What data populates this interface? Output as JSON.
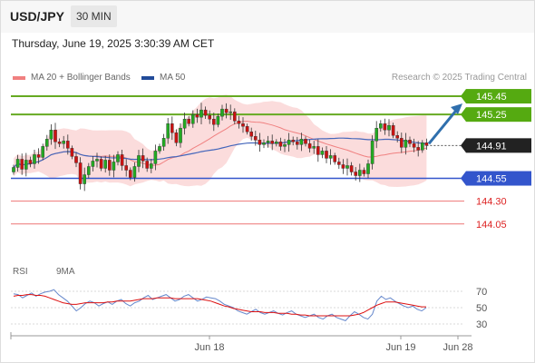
{
  "header": {
    "symbol": "USD/JPY",
    "timeframe": "30 MIN",
    "timestamp": "Thursday, June 19, 2025 3:30:39 AM CET"
  },
  "legend": {
    "ma20_bollinger": "MA 20 + Bollinger Bands",
    "ma50": "MA 50",
    "credit": "Research © 2025 Trading Central",
    "rsi": "RSI",
    "rsi_ma": "9MA"
  },
  "colors": {
    "candle_up": "#22aa22",
    "candle_down": "#cc1111",
    "bollinger_fill": "#f9d0d0",
    "ma20": "#f08080",
    "ma50": "#4466bb",
    "green_level": "#66aa22",
    "blue_level": "#3355cc",
    "red_level": "#ee7777",
    "arrow": "#2f6fad",
    "rsi_line": "#6688cc",
    "rsi_ma_line": "#dd1111"
  },
  "chart_data": {
    "type": "candlestick",
    "instrument": "USD/JPY",
    "interval": "30 MIN",
    "y_range": [
      143.7,
      145.55
    ],
    "x_labels": [
      "Jun 18",
      "Jun 19",
      "Jun 28"
    ],
    "current_price": 144.91,
    "levels": [
      {
        "value": 145.45,
        "label": "145.45",
        "kind": "resistance"
      },
      {
        "value": 145.25,
        "label": "145.25",
        "kind": "resistance"
      },
      {
        "value": 144.55,
        "label": "144.55",
        "kind": "pivot"
      },
      {
        "value": 144.3,
        "label": "144.30",
        "kind": "support"
      },
      {
        "value": 144.05,
        "label": "144.05",
        "kind": "support"
      }
    ],
    "forecast_target": 145.45,
    "closes": [
      144.67,
      144.76,
      144.65,
      144.75,
      144.71,
      144.81,
      144.78,
      144.9,
      144.98,
      145.08,
      144.95,
      144.93,
      144.96,
      144.88,
      144.79,
      144.72,
      144.49,
      144.59,
      144.68,
      144.74,
      144.76,
      144.66,
      144.75,
      144.64,
      144.73,
      144.81,
      144.69,
      144.64,
      144.56,
      144.68,
      144.8,
      144.74,
      144.66,
      144.71,
      144.85,
      144.9,
      144.99,
      145.15,
      145.05,
      144.94,
      145.1,
      145.2,
      145.15,
      145.25,
      145.22,
      145.3,
      145.24,
      145.2,
      145.14,
      145.23,
      145.31,
      145.27,
      145.28,
      145.18,
      145.15,
      145.12,
      145.06,
      145.01,
      144.97,
      144.92,
      144.94,
      144.96,
      144.93,
      144.95,
      144.9,
      144.92,
      144.97,
      144.95,
      144.92,
      144.98,
      144.93,
      144.88,
      144.9,
      144.81,
      144.85,
      144.77,
      144.8,
      144.73,
      144.7,
      144.66,
      144.69,
      144.62,
      144.58,
      144.64,
      144.6,
      144.71,
      144.96,
      145.1,
      145.15,
      145.08,
      145.13,
      145.02,
      144.99,
      144.89,
      144.97,
      144.93,
      144.89,
      144.86,
      144.94,
      144.91
    ],
    "rsi": {
      "y_range": [
        20,
        80
      ],
      "ticks": [
        70,
        50,
        30
      ],
      "rsi_values": [
        67,
        66,
        62,
        65,
        68,
        64,
        67,
        69,
        70,
        72,
        66,
        62,
        58,
        52,
        46,
        50,
        55,
        58,
        56,
        52,
        55,
        57,
        54,
        58,
        60,
        55,
        52,
        56,
        58,
        62,
        65,
        60,
        62,
        64,
        66,
        62,
        58,
        60,
        64,
        66,
        62,
        58,
        60,
        63,
        62,
        61,
        58,
        54,
        52,
        50,
        46,
        44,
        42,
        45,
        48,
        44,
        42,
        44,
        46,
        43,
        41,
        44,
        46,
        42,
        40,
        38,
        40,
        42,
        38,
        36,
        40,
        42,
        38,
        36,
        34,
        40,
        45,
        42,
        38,
        36,
        42,
        58,
        64,
        60,
        62,
        58,
        55,
        52,
        50,
        52,
        48,
        46,
        50
      ],
      "ma_values": [
        64,
        65,
        65,
        66,
        66,
        65,
        65,
        64,
        62,
        60,
        58,
        56,
        55,
        54,
        54,
        55,
        56,
        56,
        56,
        56,
        56,
        57,
        57,
        58,
        58,
        58,
        58,
        59,
        60,
        61,
        61,
        61,
        62,
        62,
        62,
        62,
        61,
        61,
        61,
        61,
        61,
        61,
        60,
        59,
        58,
        56,
        54,
        52,
        51,
        49,
        48,
        47,
        46,
        45,
        45,
        45,
        44,
        44,
        44,
        43,
        43,
        43,
        42,
        42,
        41,
        41,
        40,
        40,
        40,
        40,
        40,
        40,
        40,
        40,
        40,
        40,
        41,
        42,
        44,
        47,
        50,
        53,
        55,
        57,
        57,
        57,
        56,
        55,
        54,
        53,
        52,
        51,
        51
      ]
    }
  }
}
